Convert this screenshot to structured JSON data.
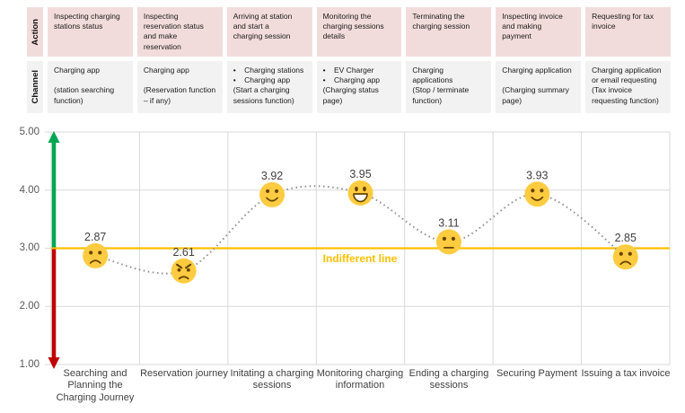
{
  "table": {
    "rows": [
      {
        "label": "Action",
        "cells": [
          "Inspecting charging\nstations status",
          "Inspecting\nreservation status\nand make\nreservation",
          "Arriving at station\nand start a\ncharging session",
          "Monitoring the\ncharging sessions\ndetails",
          "Terminating the\ncharging session",
          "Inspecting invoice\nand making\npayment",
          "Requesting for tax\ninvoice"
        ]
      },
      {
        "label": "Channel",
        "cells": [
          "Charging app\n\n(station searching\nfunction)",
          "Charging app\n\n(Reservation function\n– if any)",
          "•    Charging stations\n•    Charging app\n(Start a charging\nsessions function)",
          "•    EV Charger\n•    Charging app\n(Charging status\npage)",
          "Charging\napplications\n(Stop / terminate\nfunction)",
          "Charging application\n\n(Charging summary\npage)",
          "Charging application\nor email requesting\n(Tax invoice\nrequesting function)"
        ]
      }
    ]
  },
  "chart_data": {
    "type": "line",
    "title": "",
    "categories": [
      "Searching and Planning the Charging Journey",
      "Reservation journey",
      "Initating a charging sessions",
      "Monitoring charging information",
      "Ending a charging sessions",
      "Securing Payment",
      "Issuing a tax invoice"
    ],
    "values": [
      2.87,
      2.61,
      3.92,
      3.95,
      3.11,
      3.93,
      2.85
    ],
    "point_labels": [
      "2.87",
      "2.61",
      "3.92",
      "3.95",
      "3.11",
      "3.93",
      "2.85"
    ],
    "point_faces": [
      "frown",
      "angry",
      "smile",
      "grin",
      "neutral",
      "smile",
      "frown"
    ],
    "y_ticks": [
      "5.00",
      "4.00",
      "3.00",
      "2.00",
      "1.00"
    ],
    "ylim": [
      1,
      5
    ],
    "grid": true,
    "line_style": "dotted",
    "indifferent_line": {
      "value": 3.0,
      "label": "Indifferent line",
      "color": "#FFC000"
    }
  },
  "colors": {
    "action_row_bg": "#F2DCDB",
    "channel_row_bg": "#F2F2F2",
    "indifferent": "#FFC000",
    "arrow_positive": "#00A651",
    "arrow_negative": "#C00000",
    "grid": "#D9D9D9",
    "dotted_line": "#8F8F8F",
    "emoji_fill": "#FFCB40",
    "emoji_features": "#664500",
    "value_text": "#404040"
  }
}
